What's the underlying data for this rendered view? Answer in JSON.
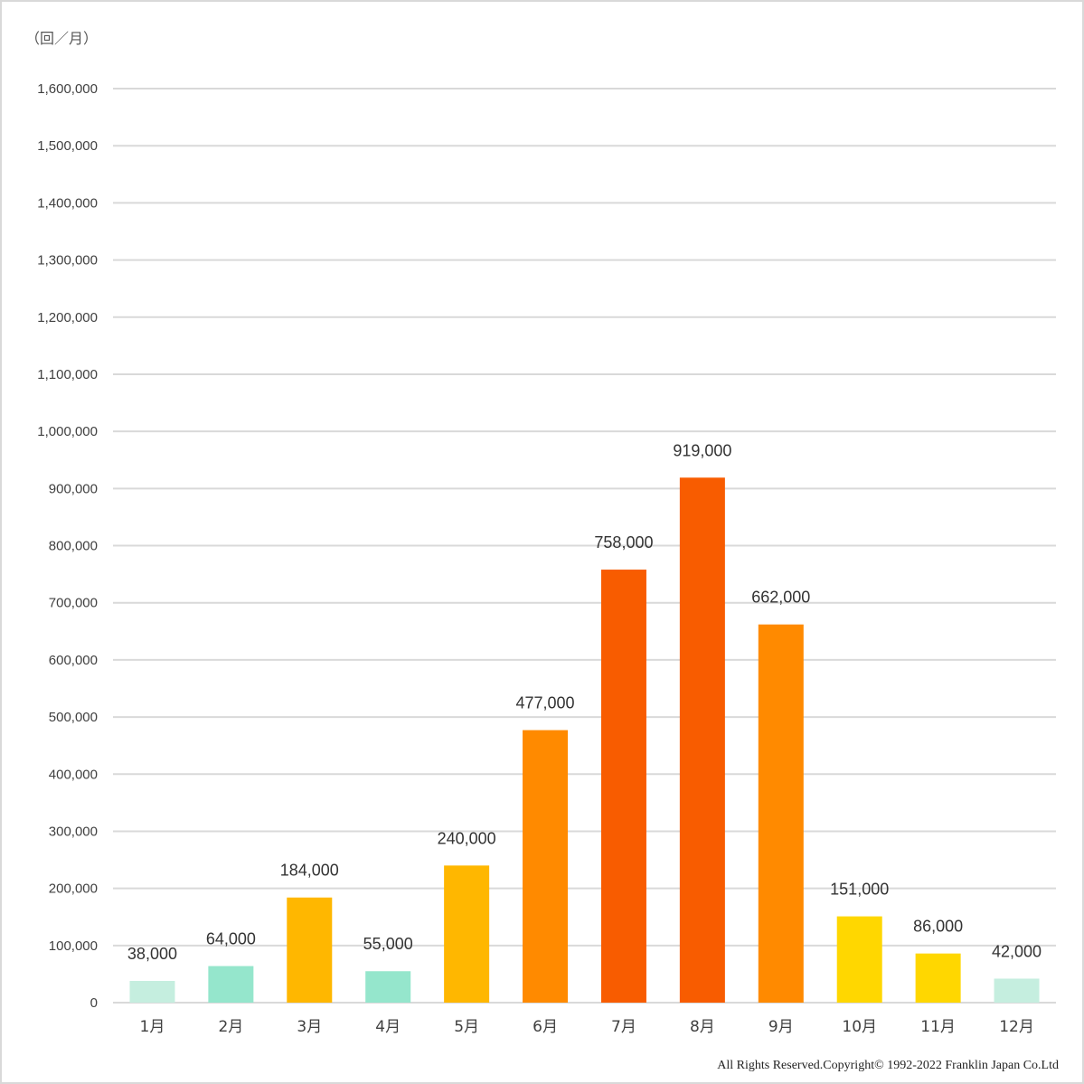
{
  "unit_label": "（回／月）",
  "copyright": "All Rights Reserved.Copyright©  1992-2022 Franklin Japan Co.Ltd",
  "chart_data": {
    "type": "bar",
    "title": "",
    "xlabel": "",
    "ylabel": "（回／月）",
    "ylim": [
      0,
      1600000
    ],
    "y_ticks": [
      0,
      100000,
      200000,
      300000,
      400000,
      500000,
      600000,
      700000,
      800000,
      900000,
      1000000,
      1100000,
      1200000,
      1300000,
      1400000,
      1500000,
      1600000
    ],
    "y_tick_labels": [
      "0",
      "100,000",
      "200,000",
      "300,000",
      "400,000",
      "500,000",
      "600,000",
      "700,000",
      "800,000",
      "900,000",
      "1,000,000",
      "1,100,000",
      "1,200,000",
      "1,300,000",
      "1,400,000",
      "1,500,000",
      "1,600,000"
    ],
    "grid": true,
    "legend": "none",
    "categories": [
      "1月",
      "2月",
      "3月",
      "4月",
      "5月",
      "6月",
      "7月",
      "8月",
      "9月",
      "10月",
      "11月",
      "12月"
    ],
    "values": [
      38000,
      64000,
      184000,
      55000,
      240000,
      477000,
      758000,
      919000,
      662000,
      151000,
      86000,
      42000
    ],
    "value_labels": [
      "38,000",
      "64,000",
      "184,000",
      "55,000",
      "240,000",
      "477,000",
      "758,000",
      "919,000",
      "662,000",
      "151,000",
      "86,000",
      "42,000"
    ],
    "bar_colors": [
      "#c5eedf",
      "#95e6cc",
      "#ffb700",
      "#95e6cc",
      "#ffb700",
      "#ff8a00",
      "#f85c00",
      "#f85c00",
      "#ff8a00",
      "#ffd700",
      "#ffd700",
      "#c5eedf"
    ],
    "gridline_color": "#d9d9d9"
  }
}
